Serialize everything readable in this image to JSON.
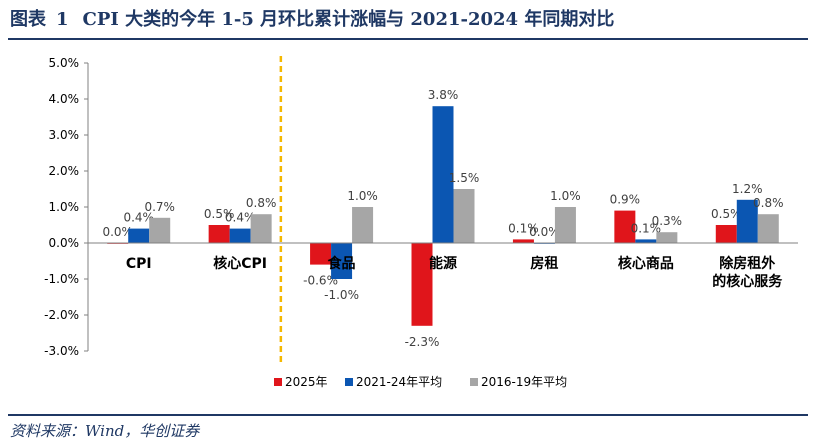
{
  "figure": {
    "number_label": "图表",
    "number": "1",
    "title": "CPI 大类的今年 1-5 月环比累计涨幅与 2021-2024 年同期对比"
  },
  "source": "资料来源：Wind，华创证券",
  "chart_data": {
    "type": "bar",
    "categories": [
      "CPI",
      "核心CPI",
      "食品",
      "能源",
      "房租",
      "核心商品",
      "除房租外\n的核心服务"
    ],
    "series": [
      {
        "name": "2025年",
        "color": "#e0151b",
        "values": [
          0.0,
          0.5,
          -0.6,
          -2.3,
          0.1,
          0.9,
          0.5
        ],
        "labels": [
          "0.0%",
          "0.5%",
          "-0.6%",
          "-2.3%",
          "0.1%",
          "0.9%",
          "0.5%"
        ]
      },
      {
        "name": "2021-24年平均",
        "color": "#0b56b2",
        "values": [
          0.4,
          0.4,
          -1.0,
          3.8,
          0.0,
          0.1,
          1.2
        ],
        "labels": [
          "0.4%",
          "0.4%",
          "-1.0%",
          "3.8%",
          "0.0%",
          "0.1%",
          "1.2%"
        ]
      },
      {
        "name": "2016-19年平均",
        "color": "#a6a6a6",
        "values": [
          0.7,
          0.8,
          1.0,
          1.5,
          1.0,
          0.3,
          0.8
        ],
        "labels": [
          "0.7%",
          "0.8%",
          "1.0%",
          "1.5%",
          "1.0%",
          "0.3%",
          "0.8%"
        ]
      }
    ],
    "yticks": [
      "-3.0%",
      "-2.0%",
      "-1.0%",
      "0.0%",
      "1.0%",
      "2.0%",
      "3.0%",
      "4.0%",
      "5.0%"
    ],
    "ylim": [
      -3,
      5
    ],
    "legend_position": "bottom",
    "separator_color": "#f5b800"
  }
}
